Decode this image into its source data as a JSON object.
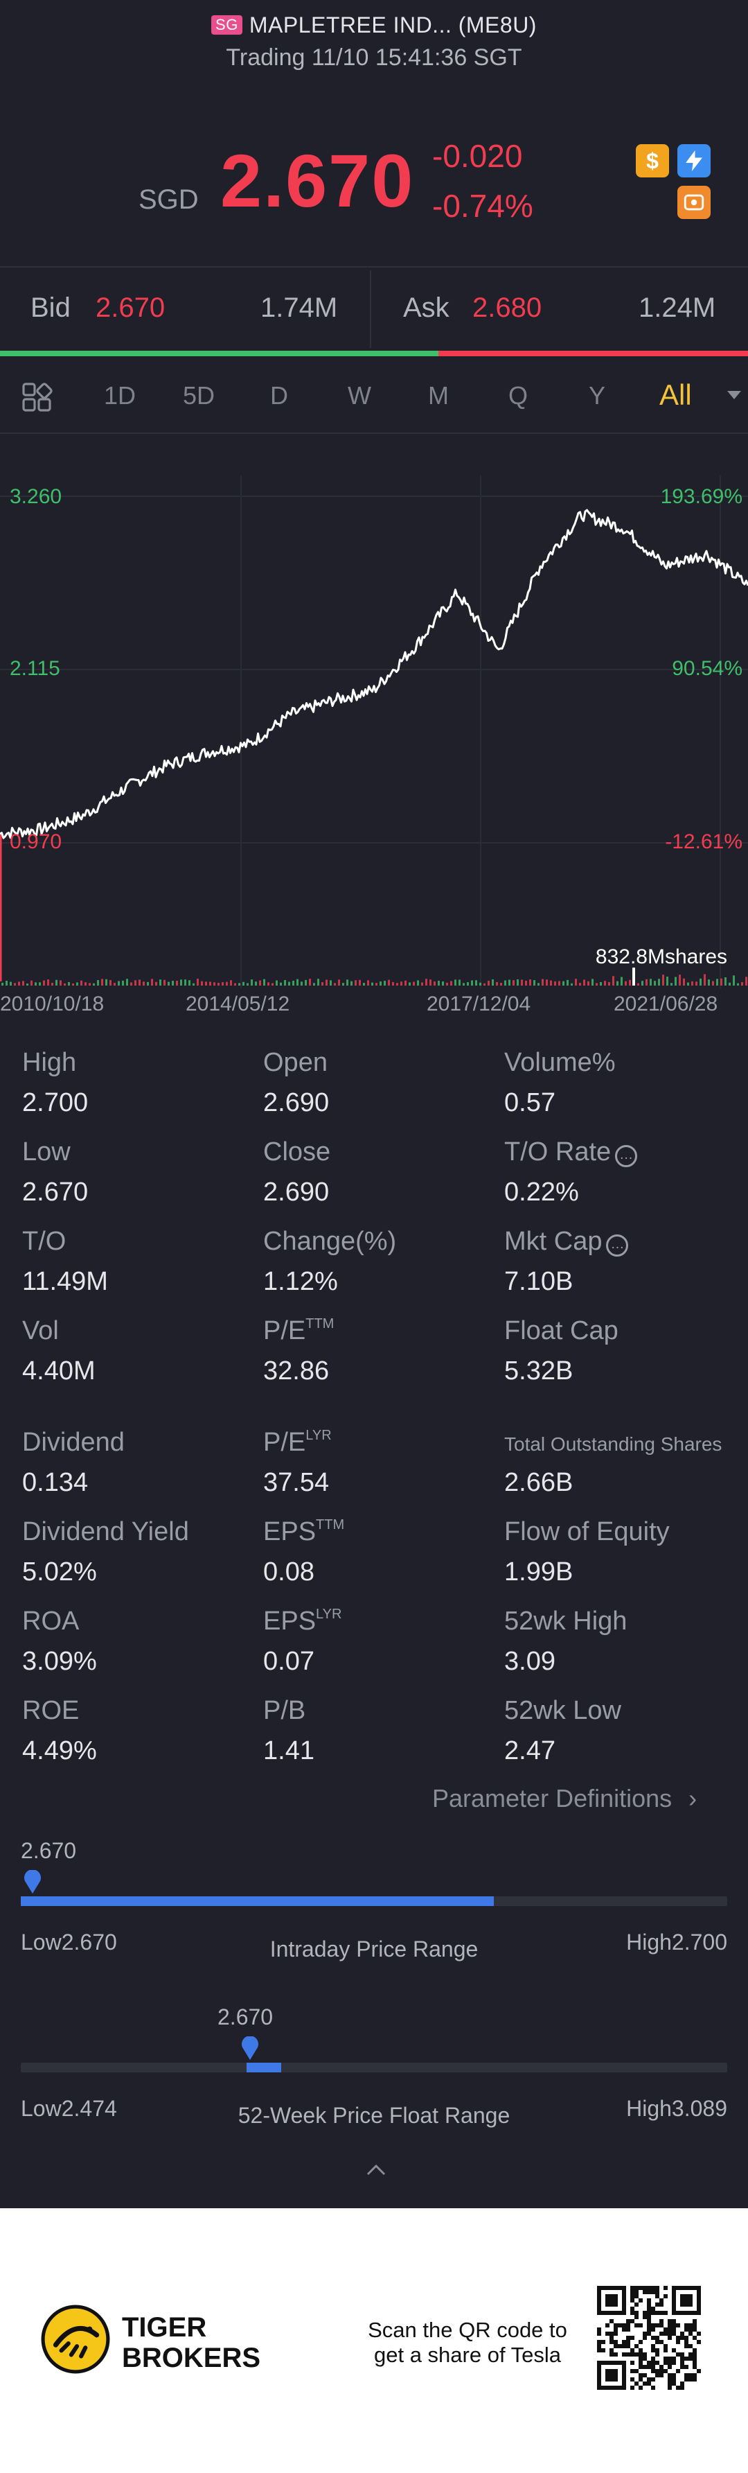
{
  "header": {
    "badge": "SG",
    "title": "MAPLETREE IND... (ME8U)",
    "status": "Trading 11/10 15:41:36 SGT"
  },
  "quote": {
    "currency": "SGD",
    "price": "2.670",
    "change": "-0.020",
    "change_percent": "-0.74%"
  },
  "bid_ask": {
    "bid_label": "Bid",
    "bid_price": "2.670",
    "bid_size": "1.74M",
    "ask_label": "Ask",
    "ask_price": "2.680",
    "ask_size": "1.24M",
    "bid_ratio": 0.586
  },
  "tabs": [
    "1D",
    "5D",
    "D",
    "W",
    "M",
    "Q",
    "Y",
    "All"
  ],
  "active_tab": "All",
  "chart": {
    "y_left": [
      "3.260",
      "2.115",
      "0.970"
    ],
    "y_right": [
      "193.69%",
      "90.54%",
      "-12.61%"
    ],
    "volume_label": "832.8Mshares",
    "x_dates": [
      "2010/10/18",
      "2014/05/12",
      "2017/12/04",
      "2021/06/28"
    ]
  },
  "chart_data": {
    "type": "line",
    "x": [
      "2010/10/18",
      "2011/06",
      "2012/06",
      "2013/06",
      "2014/05/12",
      "2015/06",
      "2016/06",
      "2017/06",
      "2017/12/04",
      "2018/09",
      "2019/06",
      "2019/12",
      "2020/03",
      "2020/04",
      "2020/08",
      "2020/12",
      "2021/03",
      "2021/06/28",
      "2021/11/10"
    ],
    "y": [
      1.03,
      1.06,
      1.15,
      1.33,
      1.48,
      1.57,
      1.62,
      1.82,
      1.91,
      1.98,
      2.27,
      2.62,
      2.24,
      2.8,
      3.14,
      3.05,
      2.8,
      2.88,
      2.67
    ],
    "ylim": [
      0.97,
      3.26
    ],
    "y_ticks": [
      3.26,
      2.115,
      0.97
    ],
    "y2_ticks": [
      "193.69%",
      "90.54%",
      "-12.61%"
    ],
    "grid": true
  },
  "stats": [
    {
      "label": "High",
      "value": "2.700"
    },
    {
      "label": "Open",
      "value": "2.690"
    },
    {
      "label": "Volume%",
      "value": "0.57"
    },
    {
      "label": "Low",
      "value": "2.670"
    },
    {
      "label": "Close",
      "value": "2.690"
    },
    {
      "label": "T/O Rate",
      "value": "0.22%"
    },
    {
      "label": "T/O",
      "value": "11.49M"
    },
    {
      "label": "Change(%)",
      "value": "1.12%"
    },
    {
      "label": "Mkt Cap",
      "value": "7.10B"
    },
    {
      "label": "Vol",
      "value": "4.40M"
    },
    {
      "label": "P/E",
      "sup": "TTM",
      "value": "32.86"
    },
    {
      "label": "Float Cap",
      "value": "5.32B"
    },
    {
      "label": "Dividend",
      "value": "0.134"
    },
    {
      "label": "P/E",
      "sup": "LYR",
      "value": "37.54"
    },
    {
      "label": "Total Outstanding Shares",
      "value": "2.66B"
    },
    {
      "label": "Dividend Yield",
      "value": "5.02%"
    },
    {
      "label": "EPS",
      "sup": "TTM",
      "value": "0.08"
    },
    {
      "label": "Flow of Equity",
      "value": "1.99B"
    },
    {
      "label": "ROA",
      "value": "3.09%"
    },
    {
      "label": "EPS",
      "sup": "LYR",
      "value": "0.07"
    },
    {
      "label": "52wk High",
      "value": "3.09"
    },
    {
      "label": "ROE",
      "value": "4.49%"
    },
    {
      "label": "P/B",
      "value": "1.41"
    },
    {
      "label": "52wk Low",
      "value": "2.47"
    }
  ],
  "param_link": "Parameter Definitions",
  "intraday": {
    "marker": "2.670",
    "low_label": "Low",
    "low": "2.670",
    "title": "Intraday Price Range",
    "high_label": "High",
    "high": "2.700",
    "fill_fraction": 0.67
  },
  "week52": {
    "marker": "2.670",
    "low_label": "Low",
    "low": "2.474",
    "title": "52-Week Price Float Range",
    "high_label": "High",
    "high": "3.089",
    "position_fraction": 0.32
  },
  "footer": {
    "brand_line1": "TIGER",
    "brand_line2": "BROKERS",
    "cta_line1": "Scan the QR code to",
    "cta_line2": "get a share of Tesla"
  }
}
